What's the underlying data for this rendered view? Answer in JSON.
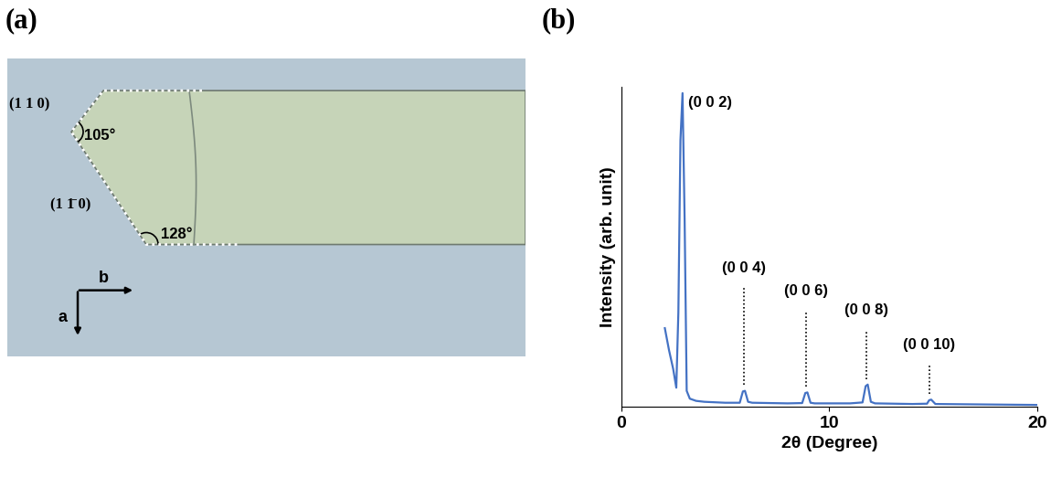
{
  "chart_data": {
    "type": "line",
    "panel_label": "(b)",
    "x_label": "2θ (Degree)",
    "y_label": "Intensity (arb. unit)",
    "x": [
      2.1,
      2.3,
      2.5,
      2.65,
      2.75,
      2.85,
      2.95,
      3.05,
      3.15,
      3.3,
      3.6,
      4.0,
      5.0,
      5.7,
      5.85,
      5.95,
      6.1,
      6.3,
      8.0,
      8.7,
      8.85,
      8.95,
      9.1,
      9.3,
      11.0,
      11.6,
      11.75,
      11.85,
      12.0,
      12.2,
      14.0,
      14.7,
      14.8,
      14.9,
      15.1,
      20.0
    ],
    "values": [
      25,
      18,
      12,
      6,
      30,
      85,
      100,
      60,
      5,
      2.5,
      1.8,
      1.5,
      1.2,
      1.2,
      4.8,
      5.0,
      1.5,
      1.2,
      1.0,
      1.1,
      4.3,
      4.5,
      1.2,
      1.0,
      1.0,
      1.3,
      6.5,
      7,
      1.5,
      1.0,
      0.8,
      0.9,
      2.0,
      2.2,
      0.8,
      0.5
    ],
    "color": "#4472c4",
    "xlim": [
      0,
      20
    ],
    "xticks": [
      0,
      10,
      20
    ],
    "ylim": [
      0,
      102
    ],
    "yticks": [],
    "tick_labels": "x",
    "annotations": [
      {
        "text": "(0 0 2)",
        "x": 2.95
      },
      {
        "text": "(0 0 4)",
        "x": 5.9
      },
      {
        "text": "(0 0 6)",
        "x": 8.9
      },
      {
        "text": "(0 0 8)",
        "x": 11.8
      },
      {
        "text": "(0 0 10)",
        "x": 14.8
      }
    ]
  },
  "panel_a": {
    "panel_label": "(a)",
    "facets": [
      "(1 1 0)",
      "(1 1̄ 0)"
    ],
    "angles": [
      "105°",
      "128°"
    ],
    "axes": [
      "a",
      "b"
    ]
  }
}
